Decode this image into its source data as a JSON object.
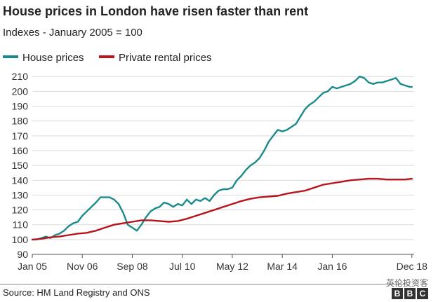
{
  "title": "House prices in London have risen faster than rent",
  "subtitle": "Indexes - January 2005 = 100",
  "source": "Source: HM Land Registry and ONS",
  "watermark": "英伦投资客",
  "logo": [
    "B",
    "B",
    "C"
  ],
  "colors": {
    "house": "#1a8a8a",
    "rent": "#b8141c",
    "grid": "#d9d9d9",
    "axis": "#555555"
  },
  "chart_data": {
    "type": "line",
    "title": "House prices in London have risen faster than rent",
    "subtitle": "Indexes - January 2005 = 100",
    "ylim": [
      90,
      212
    ],
    "yticks": [
      90,
      100,
      110,
      120,
      130,
      140,
      150,
      160,
      170,
      180,
      190,
      200,
      210
    ],
    "xlim": [
      0,
      168
    ],
    "xtick_labels": [
      "Jan 05",
      "Nov 06",
      "Sep 08",
      "Jul 10",
      "May 12",
      "Mar 14",
      "Jan 16",
      "Dec 18"
    ],
    "xtick_positions": [
      0,
      22,
      44,
      66,
      88,
      110,
      132,
      167
    ],
    "grid": true,
    "legend": "top-left",
    "series": [
      {
        "name": "House prices",
        "color": "#1a8a8a",
        "x": [
          0,
          2,
          4,
          6,
          8,
          10,
          12,
          14,
          16,
          18,
          20,
          22,
          24,
          26,
          28,
          30,
          32,
          34,
          36,
          38,
          40,
          42,
          44,
          46,
          48,
          50,
          52,
          54,
          56,
          58,
          60,
          62,
          64,
          66,
          68,
          70,
          72,
          74,
          76,
          78,
          80,
          82,
          84,
          86,
          88,
          90,
          92,
          94,
          96,
          98,
          100,
          102,
          104,
          106,
          108,
          110,
          112,
          114,
          116,
          118,
          120,
          122,
          124,
          126,
          128,
          130,
          132,
          134,
          136,
          138,
          140,
          142,
          144,
          146,
          148,
          150,
          152,
          154,
          156,
          158,
          160,
          162,
          164,
          166,
          167
        ],
        "y": [
          100,
          100,
          101,
          102,
          101,
          103,
          104,
          106,
          109,
          111,
          112,
          116,
          119,
          122,
          125,
          128.5,
          128.5,
          128.5,
          127,
          124,
          118,
          110,
          108,
          106,
          110,
          115,
          119,
          121,
          122,
          125,
          124,
          122,
          124,
          123,
          127,
          124,
          127,
          126,
          128,
          126,
          130,
          133,
          134,
          134,
          135,
          140,
          143,
          147,
          150,
          152,
          155,
          160,
          166,
          170,
          174,
          173,
          174,
          176,
          178,
          183,
          188,
          191,
          193,
          196,
          199,
          200,
          203,
          202,
          203,
          204,
          205,
          207,
          210,
          209,
          206,
          205,
          206,
          206,
          207,
          208,
          209,
          205,
          204,
          203,
          203
        ]
      },
      {
        "name": "Private rental prices",
        "color": "#b8141c",
        "x": [
          0,
          4,
          8,
          12,
          16,
          20,
          24,
          28,
          32,
          36,
          40,
          44,
          48,
          52,
          56,
          60,
          64,
          68,
          72,
          76,
          80,
          84,
          88,
          92,
          96,
          100,
          104,
          108,
          112,
          116,
          120,
          124,
          128,
          132,
          136,
          140,
          144,
          148,
          152,
          156,
          160,
          164,
          167
        ],
        "y": [
          100,
          100.5,
          101.5,
          102,
          103,
          104,
          104.5,
          106,
          108,
          110,
          111,
          112,
          113,
          113,
          112.5,
          112,
          112.5,
          114,
          116,
          118,
          120,
          122,
          124,
          126,
          127.5,
          128.5,
          129,
          129.5,
          131,
          132,
          133,
          135,
          137,
          138,
          139,
          140,
          140.5,
          141,
          141,
          140.5,
          140.5,
          140.5,
          141
        ]
      }
    ]
  }
}
